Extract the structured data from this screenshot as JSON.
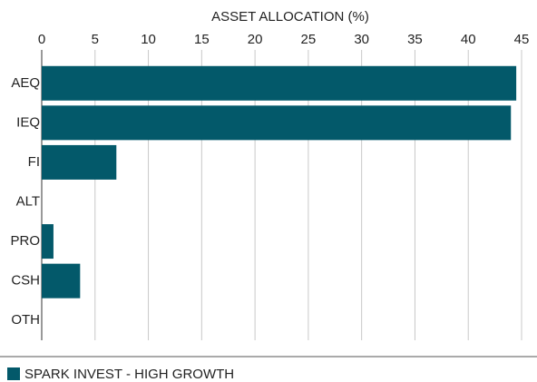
{
  "chart_data": {
    "type": "bar",
    "orientation": "horizontal",
    "title": "ASSET ALLOCATION (%)",
    "categories": [
      "AEQ",
      "IEQ",
      "FI",
      "ALT",
      "PRO",
      "CSH",
      "OTH"
    ],
    "series": [
      {
        "name": "SPARK INVEST - HIGH GROWTH",
        "color": "#03596a",
        "values": [
          44.5,
          44.0,
          7.0,
          0,
          1.1,
          3.6,
          0
        ]
      }
    ],
    "xlim": [
      0,
      45
    ],
    "xticks": [
      0,
      5,
      10,
      15,
      20,
      25,
      30,
      35,
      40,
      45
    ],
    "grid": true,
    "legend": "bottom-left"
  }
}
